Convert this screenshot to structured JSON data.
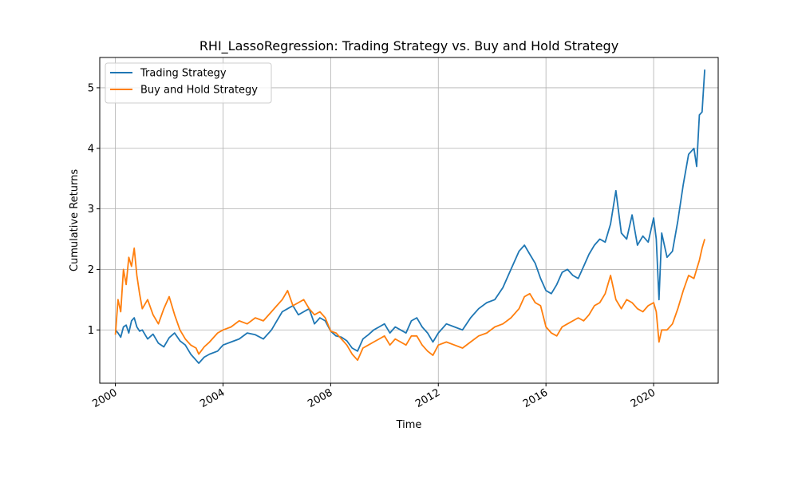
{
  "chart_data": {
    "type": "line",
    "title": "RHI_LassoRegression: Trading Strategy vs. Buy and Hold Strategy",
    "xlabel": "Time",
    "ylabel": "Cumulative Returns",
    "xlim": [
      1999.42,
      2022.4
    ],
    "ylim": [
      0.12,
      5.5
    ],
    "x_ticks": [
      2000,
      2004,
      2008,
      2012,
      2016,
      2020
    ],
    "x_tick_labels": [
      "2000",
      "2004",
      "2008",
      "2012",
      "2016",
      "2020"
    ],
    "y_ticks": [
      1,
      2,
      3,
      4,
      5
    ],
    "y_tick_labels": [
      "1",
      "2",
      "3",
      "4",
      "5"
    ],
    "grid": true,
    "legend_position": "top-left",
    "series": [
      {
        "name": "Trading Strategy",
        "color": "#1f77b4",
        "x": [
          2000.0,
          2000.1,
          2000.2,
          2000.3,
          2000.4,
          2000.5,
          2000.6,
          2000.7,
          2000.8,
          2000.9,
          2001.0,
          2001.2,
          2001.4,
          2001.6,
          2001.8,
          2002.0,
          2002.2,
          2002.4,
          2002.6,
          2002.8,
          2003.0,
          2003.1,
          2003.3,
          2003.5,
          2003.8,
          2004.0,
          2004.3,
          2004.6,
          2004.9,
          2005.2,
          2005.5,
          2005.8,
          2006.0,
          2006.2,
          2006.4,
          2006.6,
          2006.8,
          2007.0,
          2007.2,
          2007.4,
          2007.6,
          2007.8,
          2008.0,
          2008.2,
          2008.4,
          2008.6,
          2008.8,
          2009.0,
          2009.2,
          2009.4,
          2009.6,
          2009.8,
          2010.0,
          2010.2,
          2010.4,
          2010.6,
          2010.8,
          2011.0,
          2011.2,
          2011.4,
          2011.6,
          2011.8,
          2012.0,
          2012.3,
          2012.6,
          2012.9,
          2013.2,
          2013.5,
          2013.8,
          2014.1,
          2014.4,
          2014.7,
          2015.0,
          2015.2,
          2015.4,
          2015.6,
          2015.8,
          2016.0,
          2016.2,
          2016.4,
          2016.6,
          2016.8,
          2017.0,
          2017.2,
          2017.4,
          2017.6,
          2017.8,
          2018.0,
          2018.2,
          2018.4,
          2018.6,
          2018.8,
          2019.0,
          2019.2,
          2019.4,
          2019.6,
          2019.8,
          2020.0,
          2020.1,
          2020.2,
          2020.3,
          2020.5,
          2020.7,
          2020.9,
          2021.1,
          2021.3,
          2021.5,
          2021.6,
          2021.7,
          2021.8,
          2021.9
        ],
        "y": [
          1.0,
          0.95,
          0.88,
          1.05,
          1.08,
          0.95,
          1.15,
          1.2,
          1.05,
          0.98,
          1.0,
          0.85,
          0.93,
          0.78,
          0.72,
          0.87,
          0.95,
          0.82,
          0.75,
          0.6,
          0.5,
          0.45,
          0.55,
          0.6,
          0.65,
          0.75,
          0.8,
          0.85,
          0.95,
          0.92,
          0.85,
          1.0,
          1.15,
          1.3,
          1.35,
          1.4,
          1.25,
          1.3,
          1.35,
          1.1,
          1.2,
          1.15,
          0.98,
          0.9,
          0.88,
          0.82,
          0.7,
          0.65,
          0.85,
          0.92,
          1.0,
          1.05,
          1.1,
          0.95,
          1.05,
          1.0,
          0.95,
          1.15,
          1.2,
          1.05,
          0.95,
          0.8,
          0.95,
          1.1,
          1.05,
          1.0,
          1.2,
          1.35,
          1.45,
          1.5,
          1.7,
          2.0,
          2.3,
          2.4,
          2.25,
          2.1,
          1.85,
          1.65,
          1.6,
          1.75,
          1.95,
          2.0,
          1.9,
          1.85,
          2.05,
          2.25,
          2.4,
          2.5,
          2.45,
          2.75,
          3.3,
          2.6,
          2.5,
          2.9,
          2.4,
          2.55,
          2.45,
          2.85,
          2.5,
          1.5,
          2.6,
          2.2,
          2.3,
          2.8,
          3.4,
          3.9,
          4.0,
          3.7,
          4.55,
          4.6,
          5.3
        ]
      },
      {
        "name": "Buy and Hold Strategy",
        "color": "#ff7f0e",
        "x": [
          2000.0,
          2000.1,
          2000.2,
          2000.3,
          2000.4,
          2000.5,
          2000.6,
          2000.7,
          2000.8,
          2000.9,
          2001.0,
          2001.2,
          2001.4,
          2001.6,
          2001.8,
          2002.0,
          2002.2,
          2002.4,
          2002.6,
          2002.8,
          2003.0,
          2003.1,
          2003.3,
          2003.5,
          2003.8,
          2004.0,
          2004.3,
          2004.6,
          2004.9,
          2005.2,
          2005.5,
          2005.8,
          2006.0,
          2006.2,
          2006.4,
          2006.6,
          2006.8,
          2007.0,
          2007.2,
          2007.4,
          2007.6,
          2007.8,
          2008.0,
          2008.2,
          2008.4,
          2008.6,
          2008.8,
          2009.0,
          2009.2,
          2009.4,
          2009.6,
          2009.8,
          2010.0,
          2010.2,
          2010.4,
          2010.6,
          2010.8,
          2011.0,
          2011.2,
          2011.4,
          2011.6,
          2011.8,
          2012.0,
          2012.3,
          2012.6,
          2012.9,
          2013.2,
          2013.5,
          2013.8,
          2014.1,
          2014.4,
          2014.7,
          2015.0,
          2015.2,
          2015.4,
          2015.6,
          2015.8,
          2016.0,
          2016.2,
          2016.4,
          2016.6,
          2016.8,
          2017.0,
          2017.2,
          2017.4,
          2017.6,
          2017.8,
          2018.0,
          2018.2,
          2018.4,
          2018.6,
          2018.8,
          2019.0,
          2019.2,
          2019.4,
          2019.6,
          2019.8,
          2020.0,
          2020.1,
          2020.2,
          2020.3,
          2020.5,
          2020.7,
          2020.9,
          2021.1,
          2021.3,
          2021.5,
          2021.6,
          2021.7,
          2021.8,
          2021.9
        ],
        "y": [
          0.92,
          1.5,
          1.3,
          2.0,
          1.75,
          2.2,
          2.05,
          2.35,
          1.9,
          1.6,
          1.35,
          1.5,
          1.25,
          1.1,
          1.35,
          1.55,
          1.25,
          1.0,
          0.85,
          0.75,
          0.7,
          0.6,
          0.72,
          0.8,
          0.95,
          1.0,
          1.05,
          1.15,
          1.1,
          1.2,
          1.15,
          1.3,
          1.4,
          1.5,
          1.65,
          1.4,
          1.45,
          1.5,
          1.35,
          1.25,
          1.3,
          1.2,
          0.98,
          0.95,
          0.85,
          0.75,
          0.6,
          0.5,
          0.7,
          0.75,
          0.8,
          0.85,
          0.9,
          0.75,
          0.85,
          0.8,
          0.75,
          0.9,
          0.9,
          0.75,
          0.65,
          0.58,
          0.75,
          0.8,
          0.75,
          0.7,
          0.8,
          0.9,
          0.95,
          1.05,
          1.1,
          1.2,
          1.35,
          1.55,
          1.6,
          1.45,
          1.4,
          1.05,
          0.95,
          0.9,
          1.05,
          1.1,
          1.15,
          1.2,
          1.15,
          1.25,
          1.4,
          1.45,
          1.6,
          1.9,
          1.5,
          1.35,
          1.5,
          1.45,
          1.35,
          1.3,
          1.4,
          1.45,
          1.3,
          0.8,
          1.0,
          1.0,
          1.1,
          1.35,
          1.65,
          1.9,
          1.85,
          2.0,
          2.15,
          2.35,
          2.5
        ]
      }
    ]
  }
}
